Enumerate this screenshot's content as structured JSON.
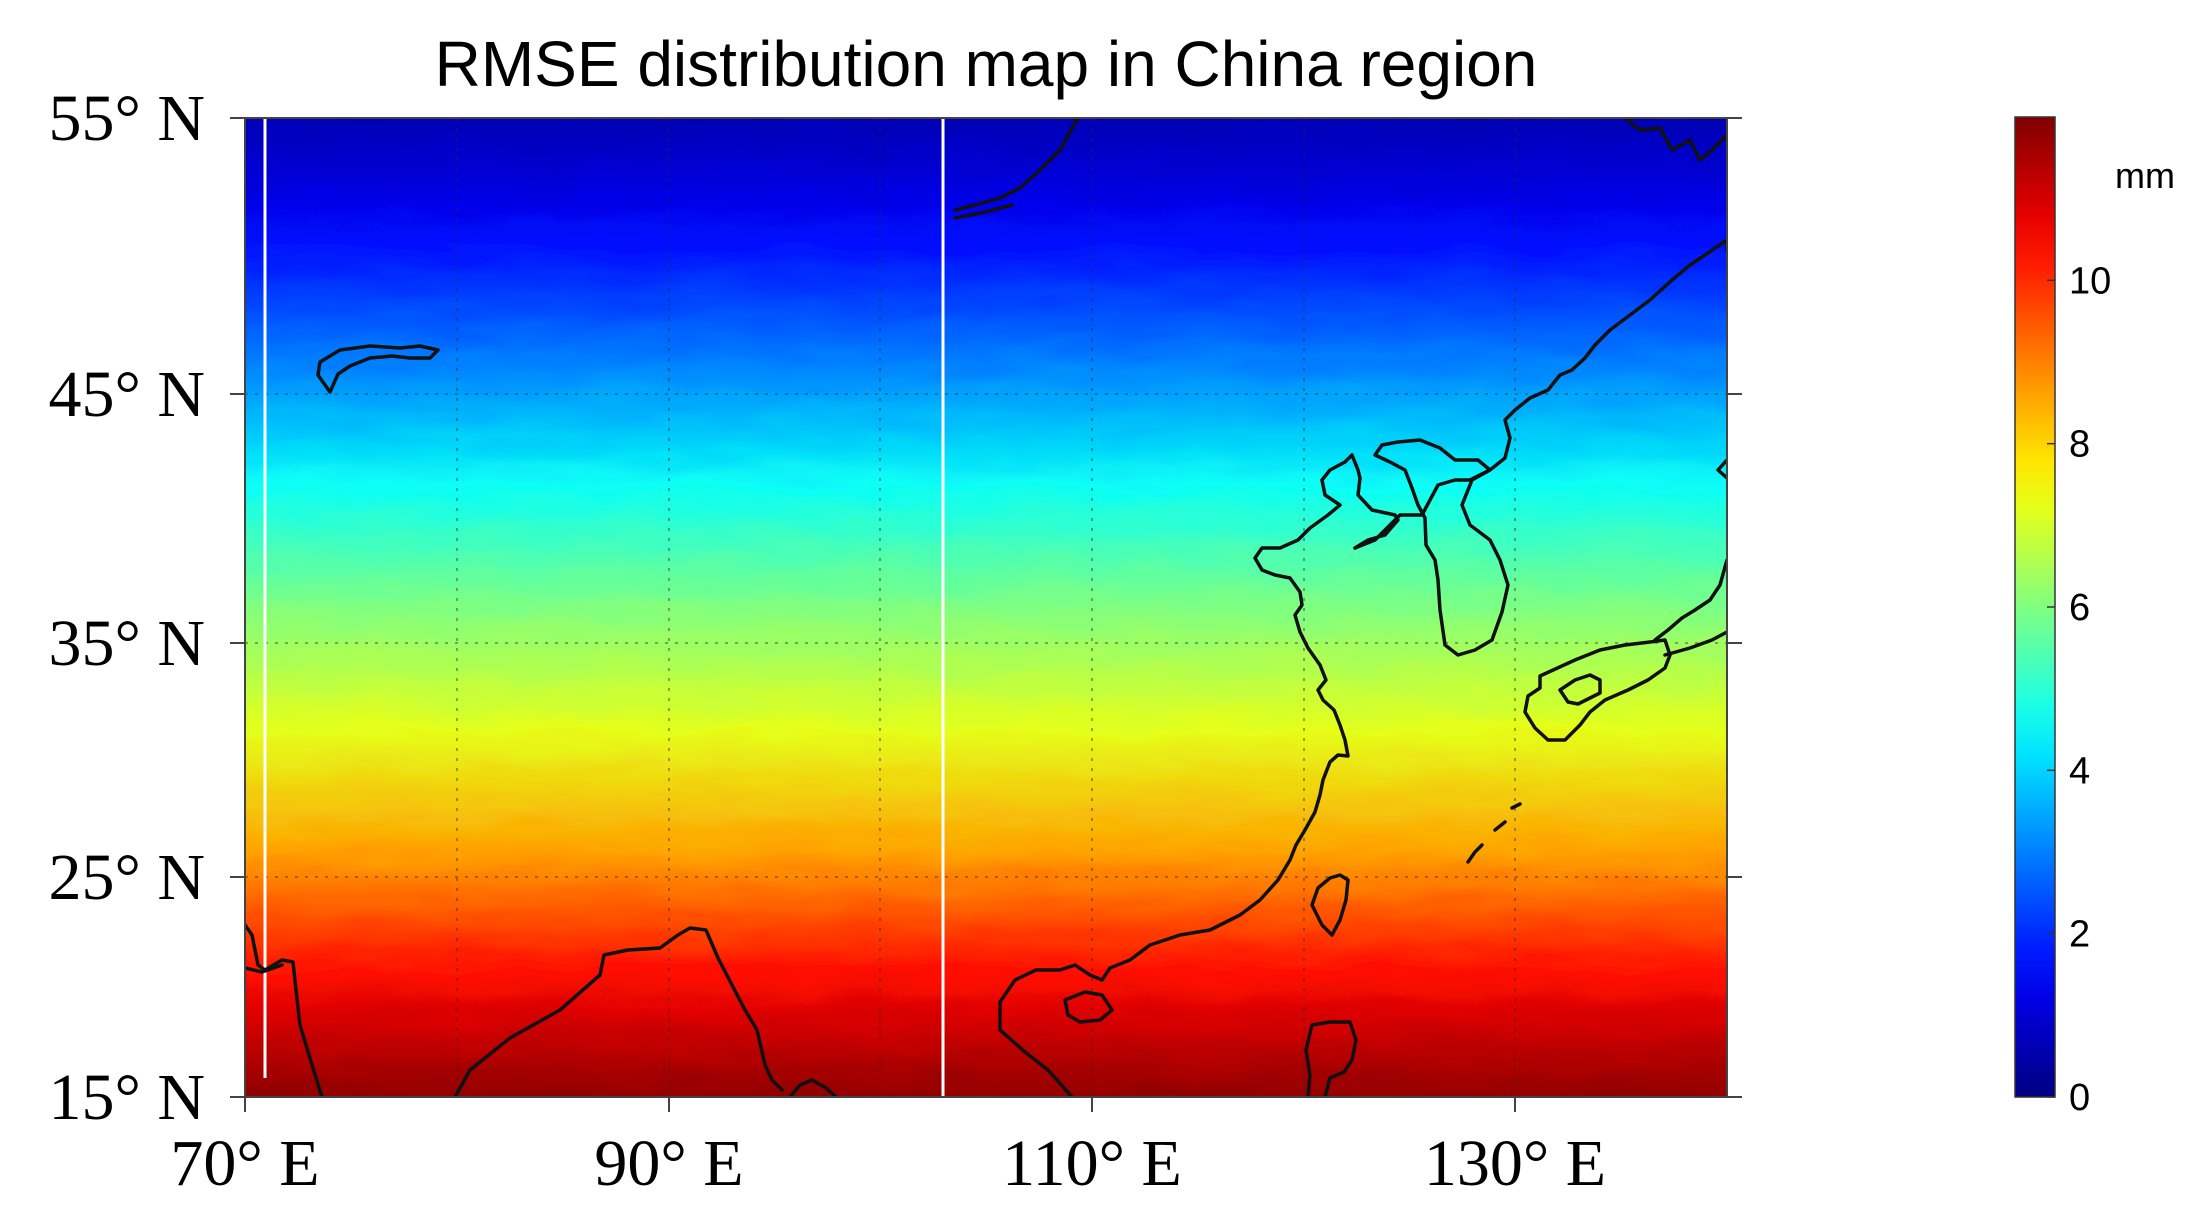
{
  "chart_data": {
    "type": "heatmap",
    "title": "RMSE distribution map in China region",
    "x_axis": {
      "min": 70,
      "max": 140,
      "ticks": [
        70,
        90,
        110,
        130
      ],
      "tick_labels": [
        "70° E",
        "90° E",
        "110° E",
        "130° E"
      ]
    },
    "y_axis": {
      "min": 15,
      "max": 55,
      "ticks": [
        15,
        25,
        35,
        45,
        55
      ],
      "tick_labels": [
        "15° N",
        "25° N",
        "35° N",
        "45° N",
        "55° N"
      ]
    },
    "grid": true,
    "colorbar": {
      "unit": "mm",
      "min": 0,
      "max": 12,
      "ticks": [
        0,
        2,
        4,
        6,
        8,
        10
      ],
      "tick_labels": [
        "0",
        "2",
        "4",
        "6",
        "8",
        "10"
      ],
      "colormap": "jet",
      "placement": "right"
    },
    "rmse_by_latitude": {
      "latitudes": [
        15,
        20,
        25,
        30,
        35,
        40,
        45,
        50,
        55
      ],
      "values": [
        11.8,
        10.4,
        8.6,
        7.2,
        6.0,
        4.6,
        3.0,
        1.6,
        0.6
      ]
    },
    "colors": {
      "coastline": "#111111",
      "background": "#ffffff"
    }
  }
}
